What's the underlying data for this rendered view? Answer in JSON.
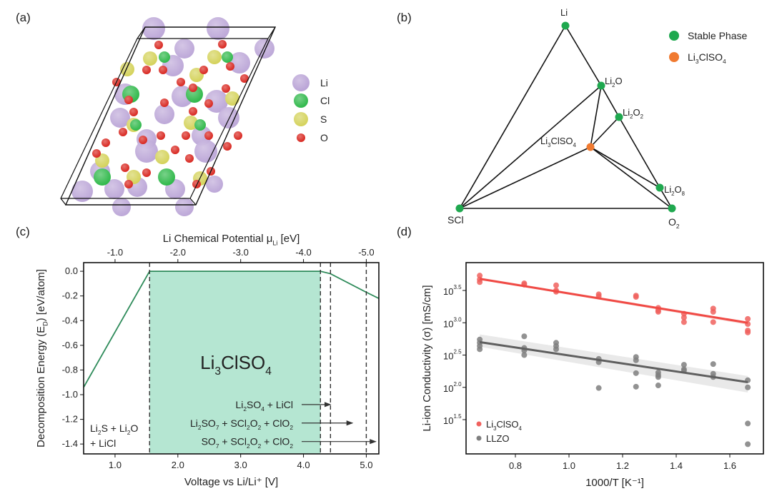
{
  "panels": {
    "a": {
      "label": "(a)",
      "legend": [
        {
          "element": "Li",
          "color": "#b9a3d6"
        },
        {
          "element": "Cl",
          "color": "#2fb84a"
        },
        {
          "element": "S",
          "color": "#d4d25a"
        },
        {
          "element": "O",
          "color": "#d8261f"
        }
      ]
    },
    "b": {
      "label": "(b)",
      "legend": [
        {
          "label": "Stable Phase",
          "color": "#1fa84f"
        },
        {
          "label": "Li3ClSO4",
          "label_main": "Li",
          "label_sub": "3",
          "label_rest": "ClSO",
          "label_sub2": "4",
          "color": "#f07a30"
        }
      ]
    },
    "c": {
      "label": "(c)"
    },
    "d": {
      "label": "(d)"
    }
  },
  "chart_data": [
    {
      "panel": "b",
      "type": "diagram",
      "title": "Ternary phase diagram Li - SCl - O2",
      "nodes": [
        {
          "id": "Li",
          "label": "Li",
          "kind": "stable"
        },
        {
          "id": "Li2O",
          "label": "Li2O",
          "kind": "stable"
        },
        {
          "id": "Li2O2",
          "label": "Li2O2",
          "kind": "stable"
        },
        {
          "id": "Li3ClSO4",
          "label": "Li3ClSO4",
          "kind": "target"
        },
        {
          "id": "Li2O8",
          "label": "Li2O8",
          "kind": "stable"
        },
        {
          "id": "SCl",
          "label": "SCl",
          "kind": "stable"
        },
        {
          "id": "O2",
          "label": "O2",
          "kind": "stable"
        }
      ],
      "edges": [
        [
          "Li",
          "SCl"
        ],
        [
          "Li",
          "Li2O"
        ],
        [
          "Li2O",
          "Li2O2"
        ],
        [
          "Li2O2",
          "Li2O8"
        ],
        [
          "Li2O8",
          "O2"
        ],
        [
          "SCl",
          "O2"
        ],
        [
          "SCl",
          "Li2O"
        ],
        [
          "SCl",
          "Li3ClSO4"
        ],
        [
          "Li2O",
          "Li3ClSO4"
        ],
        [
          "Li2O2",
          "Li3ClSO4"
        ],
        [
          "Li3ClSO4",
          "Li2O8"
        ],
        [
          "Li3ClSO4",
          "O2"
        ]
      ]
    },
    {
      "panel": "c",
      "type": "line",
      "title": "",
      "xlabel": "Voltage vs Li/Li⁺ [V]",
      "ylabel": "Decomposition Energy (E_D) [eV/atom]",
      "x2label": "Li Chemical Potential μ_Li [eV]",
      "xlim": [
        0.5,
        5.2
      ],
      "ylim": [
        -1.48,
        0.07
      ],
      "xticks": [
        1.0,
        2.0,
        3.0,
        4.0,
        5.0
      ],
      "xtick_labels": [
        "1.0",
        "2.0",
        "3.0",
        "4.0",
        "5.0"
      ],
      "x2ticks": [
        1.0,
        2.0,
        3.0,
        4.0,
        5.0
      ],
      "x2tick_labels": [
        "-1.0",
        "-2.0",
        "-3.0",
        "-4.0",
        "-5.0"
      ],
      "yticks": [
        0.0,
        -0.2,
        -0.4,
        -0.6,
        -0.8,
        -1.0,
        -1.2,
        -1.4
      ],
      "ytick_labels": [
        "0.0",
        "-0.2",
        "-0.4",
        "-0.6",
        "-0.8",
        "-1.0",
        "-1.2",
        "-1.4"
      ],
      "series": [
        {
          "name": "E_D",
          "color": "#2e8b5a",
          "x": [
            0.5,
            1.55,
            4.27,
            4.43,
            5.0,
            5.2
          ],
          "y": [
            -0.94,
            0.0,
            0.0,
            -0.02,
            -0.17,
            -0.22
          ]
        }
      ],
      "stable_window": {
        "x": [
          1.55,
          4.27
        ],
        "color": "#b5e6d2",
        "label_main": "Li",
        "label_sub": "3",
        "label_rest": "ClSO",
        "label_sub2": "4"
      },
      "dashed_lines": [
        1.55,
        4.27,
        4.43,
        5.0
      ],
      "annotations": {
        "left": {
          "line1_parts": [
            "Li",
            "2",
            "S + Li",
            "2",
            "O"
          ],
          "line2": "+ LiCl"
        },
        "arrows": [
          {
            "text_parts": [
              "Li",
              "2",
              "SO",
              "4",
              " + LiCl"
            ],
            "to_x": 4.43,
            "y": -1.08
          },
          {
            "text_parts": [
              "Li",
              "2",
              "SO",
              "7",
              " + SCl",
              "2",
              "O",
              "2",
              " + ClO",
              "2"
            ],
            "to_x": 4.78,
            "y": -1.23
          },
          {
            "text_parts": [
              "SO",
              "7",
              " + SCl",
              "2",
              "O",
              "2",
              " + ClO",
              "2"
            ],
            "to_x": 5.15,
            "y": -1.38
          }
        ]
      }
    },
    {
      "panel": "d",
      "type": "scatter",
      "title": "",
      "xlabel": "1000/T [K⁻¹]",
      "ylabel": "Li-ion Conductivity (σ) [mS/cm]",
      "yscale": "log10",
      "xlim": [
        0.6,
        1.73
      ],
      "ylim_log10": [
        1.0,
        3.9
      ],
      "xticks": [
        0.8,
        1.0,
        1.2,
        1.4,
        1.6
      ],
      "xtick_labels": [
        "0.8",
        "1.0",
        "1.2",
        "1.4",
        "1.6"
      ],
      "yticks_log10": [
        1.5,
        2.0,
        2.5,
        3.0,
        3.5
      ],
      "ytick_base": "10",
      "ytick_exps": [
        "1.5",
        "2.0",
        "2.5",
        "3.0",
        "3.5"
      ],
      "legend_position": "bottom-left",
      "series": [
        {
          "name": "Li3ClSO4",
          "name_main": "Li",
          "name_sub": "3",
          "name_rest": "ClSO",
          "name_sub2": "4",
          "color": "#f0625e",
          "fit_color": "#f04a45",
          "band_color": "#f6c9c6",
          "points": [
            [
              0.667,
              3.73
            ],
            [
              0.667,
              3.67
            ],
            [
              0.667,
              3.63
            ],
            [
              0.833,
              3.61
            ],
            [
              0.833,
              3.59
            ],
            [
              0.952,
              3.58
            ],
            [
              0.952,
              3.5
            ],
            [
              0.952,
              3.48
            ],
            [
              1.111,
              3.44
            ],
            [
              1.111,
              3.41
            ],
            [
              1.25,
              3.42
            ],
            [
              1.25,
              3.4
            ],
            [
              1.333,
              3.23
            ],
            [
              1.333,
              3.19
            ],
            [
              1.333,
              3.17
            ],
            [
              1.429,
              3.14
            ],
            [
              1.429,
              3.08
            ],
            [
              1.429,
              3.01
            ],
            [
              1.538,
              3.22
            ],
            [
              1.538,
              3.17
            ],
            [
              1.538,
              3.01
            ],
            [
              1.667,
              3.06
            ],
            [
              1.667,
              2.98
            ],
            [
              1.667,
              2.88
            ],
            [
              1.667,
              2.85
            ]
          ],
          "fit": {
            "x": [
              0.667,
              1.667
            ],
            "y": [
              3.68,
              3.0
            ]
          },
          "band_halfwidth": [
            0.02,
            0.03
          ]
        },
        {
          "name": "LLZO",
          "color": "#7f7f7f",
          "fit_color": "#5f5f5f",
          "band_color": "#e3e3e3",
          "points": [
            [
              0.667,
              2.74
            ],
            [
              0.667,
              2.69
            ],
            [
              0.667,
              2.64
            ],
            [
              0.667,
              2.59
            ],
            [
              0.833,
              2.79
            ],
            [
              0.833,
              2.61
            ],
            [
              0.833,
              2.57
            ],
            [
              0.833,
              2.5
            ],
            [
              0.952,
              2.69
            ],
            [
              0.952,
              2.64
            ],
            [
              0.952,
              2.59
            ],
            [
              1.111,
              2.44
            ],
            [
              1.111,
              2.39
            ],
            [
              1.111,
              1.99
            ],
            [
              1.25,
              2.47
            ],
            [
              1.25,
              2.42
            ],
            [
              1.25,
              2.22
            ],
            [
              1.25,
              2.01
            ],
            [
              1.333,
              2.23
            ],
            [
              1.333,
              2.19
            ],
            [
              1.333,
              2.16
            ],
            [
              1.333,
              2.03
            ],
            [
              1.429,
              2.35
            ],
            [
              1.429,
              2.28
            ],
            [
              1.429,
              2.26
            ],
            [
              1.538,
              2.36
            ],
            [
              1.538,
              2.21
            ],
            [
              1.538,
              2.16
            ],
            [
              1.667,
              2.11
            ],
            [
              1.667,
              2.0
            ],
            [
              1.667,
              1.44
            ],
            [
              1.667,
              1.12
            ]
          ],
          "fit": {
            "x": [
              0.667,
              1.667
            ],
            "y": [
              2.7,
              2.08
            ]
          },
          "band_halfwidth": [
            0.12,
            0.16
          ]
        }
      ]
    }
  ]
}
